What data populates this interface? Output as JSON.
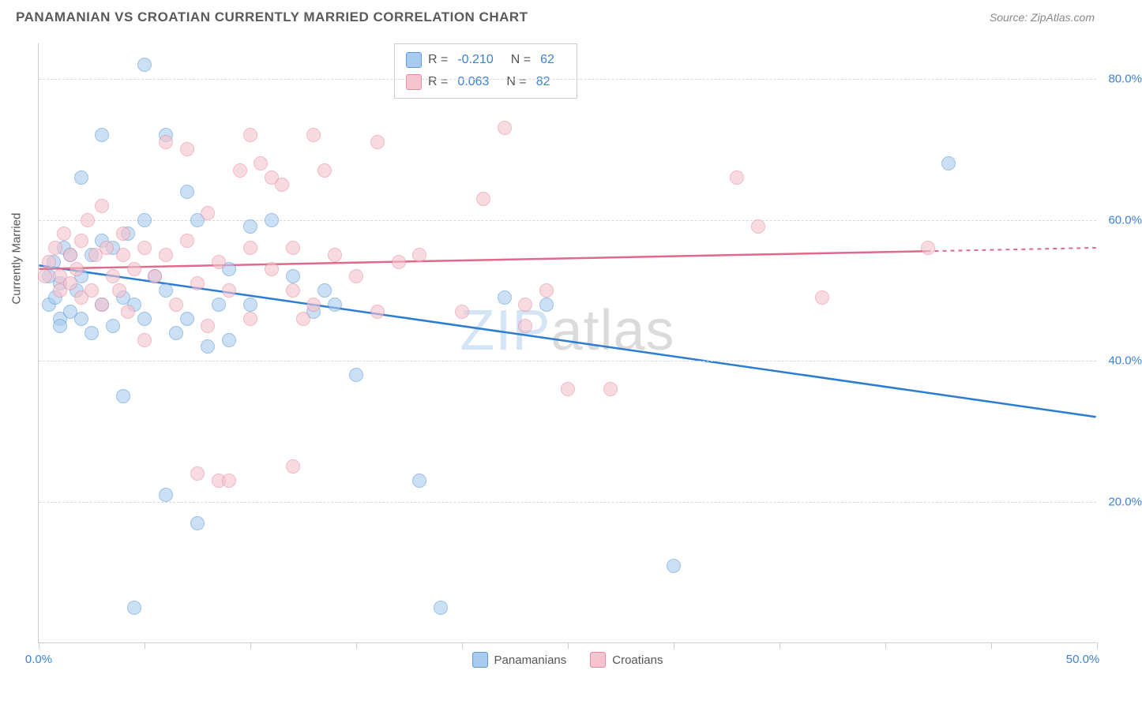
{
  "header": {
    "title": "PANAMANIAN VS CROATIAN CURRENTLY MARRIED CORRELATION CHART",
    "source": "Source: ZipAtlas.com"
  },
  "chart": {
    "type": "scatter",
    "y_axis_label": "Currently Married",
    "xlim": [
      0,
      50
    ],
    "ylim": [
      0,
      85
    ],
    "x_ticks": [
      0,
      5,
      10,
      15,
      20,
      25,
      30,
      35,
      40,
      45,
      50
    ],
    "x_tick_labels": {
      "0": "0.0%",
      "50": "50.0%"
    },
    "y_gridlines": [
      20,
      40,
      60,
      80
    ],
    "y_tick_labels": [
      "20.0%",
      "40.0%",
      "60.0%",
      "80.0%"
    ],
    "background_color": "#ffffff",
    "grid_color": "#d8d8d8",
    "axis_color": "#cccccc",
    "tick_label_color": "#3b82d6",
    "axis_label_color": "#555555",
    "marker_size": 18,
    "marker_opacity": 0.6,
    "watermark": "ZIPatlas",
    "series": [
      {
        "name": "Panamanians",
        "color_fill": "#a9cbef",
        "color_stroke": "#5a9bd8",
        "line_color": "#2b7cd3",
        "R": "-0.210",
        "N": "62",
        "trend": {
          "x1": 0,
          "y1": 53.5,
          "x2": 50,
          "y2": 32,
          "dash_from_x": null
        },
        "points": [
          [
            0.5,
            52
          ],
          [
            0.5,
            48
          ],
          [
            0.7,
            54
          ],
          [
            0.8,
            49
          ],
          [
            1,
            51
          ],
          [
            1,
            46
          ],
          [
            1,
            45
          ],
          [
            1.2,
            56
          ],
          [
            1.5,
            55
          ],
          [
            1.5,
            47
          ],
          [
            1.8,
            50
          ],
          [
            2,
            52
          ],
          [
            2,
            66
          ],
          [
            2,
            46
          ],
          [
            2.5,
            55
          ],
          [
            2.5,
            44
          ],
          [
            3,
            72
          ],
          [
            3,
            57
          ],
          [
            3,
            48
          ],
          [
            3.5,
            56
          ],
          [
            3.5,
            45
          ],
          [
            4,
            49
          ],
          [
            4,
            35
          ],
          [
            4.2,
            58
          ],
          [
            4.5,
            48
          ],
          [
            4.5,
            5
          ],
          [
            5,
            60
          ],
          [
            5,
            46
          ],
          [
            5,
            82
          ],
          [
            5.5,
            52
          ],
          [
            6,
            50
          ],
          [
            6,
            72
          ],
          [
            6,
            21
          ],
          [
            6.5,
            44
          ],
          [
            7,
            64
          ],
          [
            7,
            46
          ],
          [
            7.5,
            17
          ],
          [
            7.5,
            60
          ],
          [
            8,
            42
          ],
          [
            8.5,
            48
          ],
          [
            9,
            43
          ],
          [
            9,
            53
          ],
          [
            10,
            59
          ],
          [
            10,
            48
          ],
          [
            11,
            60
          ],
          [
            12,
            52
          ],
          [
            13,
            47
          ],
          [
            13.5,
            50
          ],
          [
            14,
            48
          ],
          [
            15,
            38
          ],
          [
            18,
            23
          ],
          [
            19,
            5
          ],
          [
            22,
            49
          ],
          [
            24,
            48
          ],
          [
            30,
            11
          ],
          [
            43,
            68
          ]
        ]
      },
      {
        "name": "Croatians",
        "color_fill": "#f5c4ce",
        "color_stroke": "#e88ba0",
        "line_color": "#e06a8b",
        "R": "0.063",
        "N": "82",
        "trend": {
          "x1": 0,
          "y1": 53,
          "x2": 50,
          "y2": 56,
          "dash_from_x": 42
        },
        "points": [
          [
            0.3,
            52
          ],
          [
            0.5,
            54
          ],
          [
            0.8,
            56
          ],
          [
            1,
            52
          ],
          [
            1,
            50
          ],
          [
            1.2,
            58
          ],
          [
            1.5,
            55
          ],
          [
            1.5,
            51
          ],
          [
            1.8,
            53
          ],
          [
            2,
            57
          ],
          [
            2,
            49
          ],
          [
            2.3,
            60
          ],
          [
            2.5,
            50
          ],
          [
            2.7,
            55
          ],
          [
            3,
            62
          ],
          [
            3,
            48
          ],
          [
            3.2,
            56
          ],
          [
            3.5,
            52
          ],
          [
            3.8,
            50
          ],
          [
            4,
            58
          ],
          [
            4,
            55
          ],
          [
            4.2,
            47
          ],
          [
            4.5,
            53
          ],
          [
            5,
            56
          ],
          [
            5,
            43
          ],
          [
            5.5,
            52
          ],
          [
            6,
            55
          ],
          [
            6,
            71
          ],
          [
            6.5,
            48
          ],
          [
            7,
            70
          ],
          [
            7,
            57
          ],
          [
            7.5,
            51
          ],
          [
            7.5,
            24
          ],
          [
            8,
            61
          ],
          [
            8,
            45
          ],
          [
            8.5,
            54
          ],
          [
            8.5,
            23
          ],
          [
            9,
            50
          ],
          [
            9,
            23
          ],
          [
            9.5,
            67
          ],
          [
            10,
            56
          ],
          [
            10,
            72
          ],
          [
            10,
            46
          ],
          [
            10.5,
            68
          ],
          [
            11,
            66
          ],
          [
            11,
            53
          ],
          [
            11.5,
            65
          ],
          [
            12,
            56
          ],
          [
            12,
            50
          ],
          [
            12,
            25
          ],
          [
            12.5,
            46
          ],
          [
            13,
            48
          ],
          [
            13,
            72
          ],
          [
            13.5,
            67
          ],
          [
            14,
            55
          ],
          [
            15,
            52
          ],
          [
            16,
            47
          ],
          [
            16,
            71
          ],
          [
            17,
            54
          ],
          [
            18,
            55
          ],
          [
            20,
            47
          ],
          [
            21,
            63
          ],
          [
            22,
            73
          ],
          [
            23,
            48
          ],
          [
            23,
            45
          ],
          [
            24,
            50
          ],
          [
            25,
            36
          ],
          [
            27,
            36
          ],
          [
            33,
            66
          ],
          [
            34,
            59
          ],
          [
            37,
            49
          ],
          [
            42,
            56
          ]
        ]
      }
    ],
    "legend_bottom": [
      "Panamanians",
      "Croatians"
    ]
  }
}
